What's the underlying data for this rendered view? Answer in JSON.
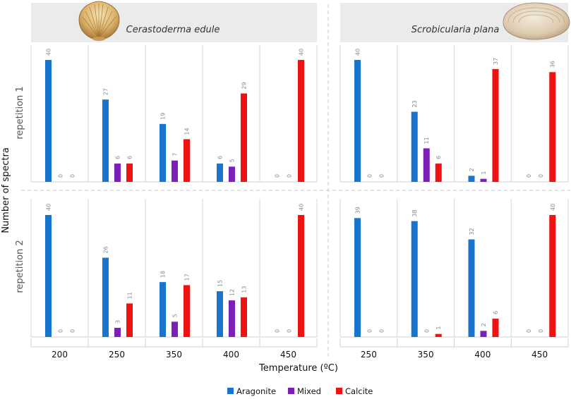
{
  "chart_data": {
    "type": "bar",
    "ylabel": "Number of spectra",
    "xlabel": "Temperature (ºC)",
    "ylim": [
      0,
      40
    ],
    "series_names": [
      "Aragonite",
      "Mixed",
      "Calcite"
    ],
    "colors": {
      "Aragonite": "#1874cd",
      "Mixed": "#7b1fb6",
      "Calcite": "#ee1212"
    },
    "legend": {
      "position": "bottom",
      "items": [
        "Aragonite",
        "Mixed",
        "Calcite"
      ]
    },
    "rows": [
      "repetition 1",
      "repetition 2"
    ],
    "species": [
      {
        "name": "Cerastoderma edule",
        "categories": [
          "200",
          "250",
          "350",
          "400",
          "450"
        ],
        "repetition_1": {
          "Aragonite": [
            40,
            27,
            19,
            6,
            0
          ],
          "Mixed": [
            0,
            6,
            7,
            5,
            0
          ],
          "Calcite": [
            0,
            6,
            14,
            29,
            40
          ]
        },
        "repetition_2": {
          "Aragonite": [
            40,
            26,
            18,
            15,
            0
          ],
          "Mixed": [
            0,
            3,
            5,
            12,
            0
          ],
          "Calcite": [
            0,
            11,
            17,
            13,
            40
          ]
        }
      },
      {
        "name": "Scrobicularia plana",
        "categories": [
          "250",
          "350",
          "400",
          "450"
        ],
        "repetition_1": {
          "Aragonite": [
            40,
            23,
            2,
            0
          ],
          "Mixed": [
            0,
            11,
            1,
            0
          ],
          "Calcite": [
            0,
            6,
            37,
            36
          ]
        },
        "repetition_2": {
          "Aragonite": [
            39,
            38,
            32,
            0
          ],
          "Mixed": [
            0,
            0,
            2,
            0
          ],
          "Calcite": [
            0,
            1,
            6,
            40
          ]
        }
      }
    ]
  }
}
